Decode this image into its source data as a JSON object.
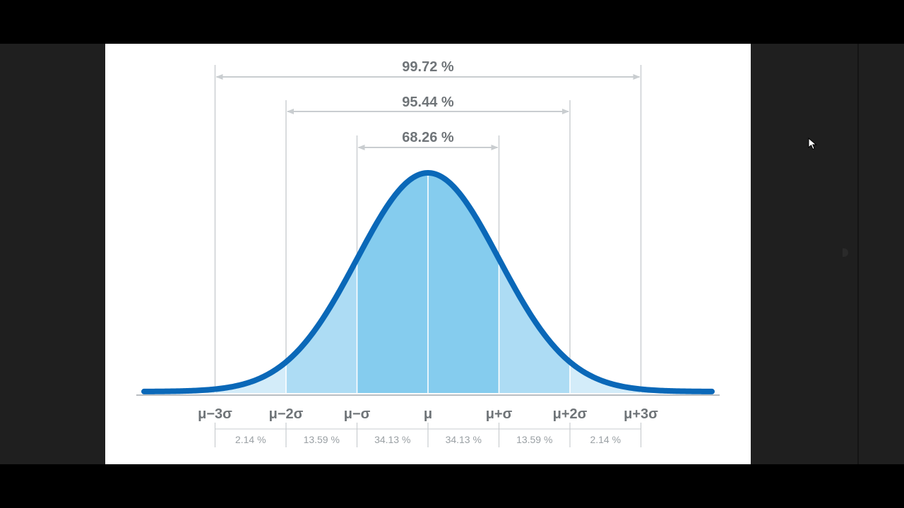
{
  "chart_data": {
    "type": "area",
    "title": "",
    "xlabel": "",
    "ylabel": "",
    "tick_labels": [
      "μ−3σ",
      "μ−2σ",
      "μ−σ",
      "μ",
      "μ+σ",
      "μ+2σ",
      "μ+3σ"
    ],
    "x_ticks_sigma": [
      -3,
      -2,
      -1,
      0,
      1,
      2,
      3
    ],
    "xlim_sigma": [
      -4,
      4
    ],
    "segment_percentages": [
      "2.14 %",
      "13.59 %",
      "34.13 %",
      "34.13 %",
      "13.59 %",
      "2.14 %"
    ],
    "segment_values": [
      2.14,
      13.59,
      34.13,
      34.13,
      13.59,
      2.14
    ],
    "intervals": [
      {
        "label": "99.72 %",
        "value": 99.72,
        "from_sigma": -3,
        "to_sigma": 3
      },
      {
        "label": "95.44 %",
        "value": 95.44,
        "from_sigma": -2,
        "to_sigma": 2
      },
      {
        "label": "68.26 %",
        "value": 68.26,
        "from_sigma": -1,
        "to_sigma": 1
      }
    ],
    "curve": "normal density",
    "colors": {
      "curve": "#0a68b8",
      "fill_inner": "#85ccee",
      "fill_middle": "#addcf4",
      "fill_outer": "#d3ecf9",
      "guides": "#c9cdd0",
      "labels": "#6f7478"
    },
    "grid": false
  }
}
